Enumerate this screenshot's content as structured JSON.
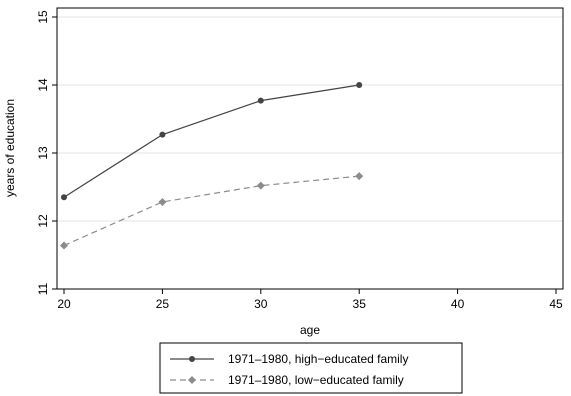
{
  "chart_data": {
    "type": "line",
    "title": "",
    "xlabel": "age",
    "ylabel": "years of education",
    "xlim": [
      20,
      45
    ],
    "ylim": [
      11,
      15
    ],
    "xticks": [
      20,
      25,
      30,
      35,
      40,
      45
    ],
    "yticks": [
      11,
      12,
      13,
      14,
      15
    ],
    "grid": "horizontal",
    "legend_position": "bottom",
    "series": [
      {
        "name": "1971–1980, high−educated family",
        "x": [
          20,
          25,
          30,
          35
        ],
        "y": [
          12.35,
          13.27,
          13.77,
          14.0
        ],
        "color": "#444444",
        "line_style": "solid",
        "marker": "circle"
      },
      {
        "name": "1971–1980, low−educated family",
        "x": [
          20,
          25,
          30,
          35
        ],
        "y": [
          11.64,
          12.28,
          12.52,
          12.66
        ],
        "color": "#8c8c8c",
        "line_style": "dashed",
        "marker": "diamond"
      }
    ]
  }
}
